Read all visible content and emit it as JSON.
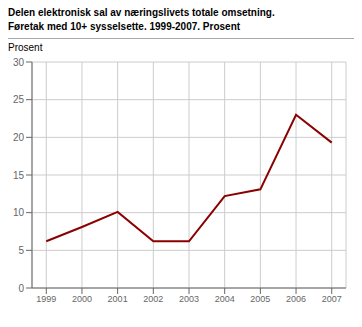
{
  "chart_data": {
    "type": "line",
    "title": "Delen elektronisk sal av næringslivets totale omsetning.",
    "subtitle": "Føretak med 10+ sysselsette. 1999-2007. Prosent",
    "ylabel": "Prosent",
    "x": [
      1999,
      2000,
      2001,
      2002,
      2003,
      2004,
      2005,
      2006,
      2007
    ],
    "values": [
      6.2,
      8.1,
      10.1,
      6.2,
      6.2,
      12.2,
      13.1,
      23.0,
      19.3
    ],
    "color": "#8B0000",
    "xlim": [
      1998.6,
      2007.4
    ],
    "xticks": [
      1999,
      2000,
      2001,
      2002,
      2003,
      2004,
      2005,
      2006,
      2007
    ],
    "ylim": [
      0,
      30
    ],
    "yticks": [
      0,
      5,
      10,
      15,
      20,
      25,
      30
    ],
    "grid": true
  }
}
